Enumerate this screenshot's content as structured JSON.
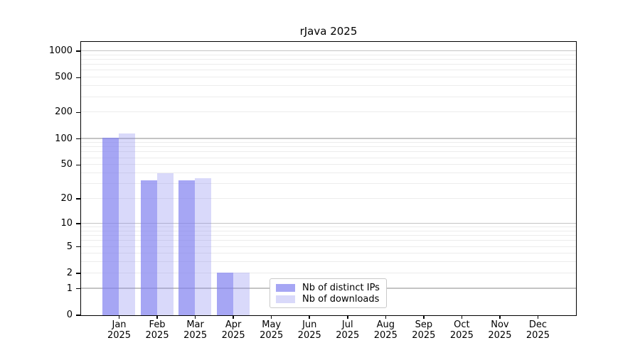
{
  "chart_data": {
    "type": "bar",
    "title": "rJava 2025",
    "x_categories": [
      "Jan",
      "Feb",
      "Mar",
      "Apr",
      "May",
      "Jun",
      "Jul",
      "Aug",
      "Sep",
      "Oct",
      "Nov",
      "Dec"
    ],
    "x_year_label": "2025",
    "series": [
      {
        "name": "Nb of distinct IPs",
        "color": "rgba(128,128,240,0.7)",
        "values": [
          102,
          33,
          33,
          2,
          0,
          0,
          0,
          0,
          0,
          0,
          0,
          0
        ]
      },
      {
        "name": "Nb of downloads",
        "color": "rgba(128,128,240,0.3)",
        "values": [
          115,
          40,
          35,
          2,
          0,
          0,
          0,
          0,
          0,
          0,
          0,
          0
        ]
      }
    ],
    "y_axis": {
      "scale": "log10(1+x)",
      "ylim": [
        0,
        1000
      ],
      "ticks": [
        0,
        1,
        2,
        5,
        10,
        20,
        50,
        100,
        200,
        500,
        1000
      ]
    },
    "grid": {
      "major_lines": [
        1,
        10,
        100,
        1000
      ],
      "minor_lines": [
        2,
        3,
        4,
        5,
        6,
        7,
        8,
        9,
        20,
        30,
        40,
        50,
        60,
        70,
        80,
        90,
        200,
        300,
        400,
        500,
        600,
        700,
        800,
        900
      ],
      "major_color": "#c4c4c4",
      "minor_color": "#ececec"
    },
    "legend": {
      "position": "lower center"
    },
    "colors": {
      "axis": "#000000",
      "background": "#ffffff"
    }
  }
}
